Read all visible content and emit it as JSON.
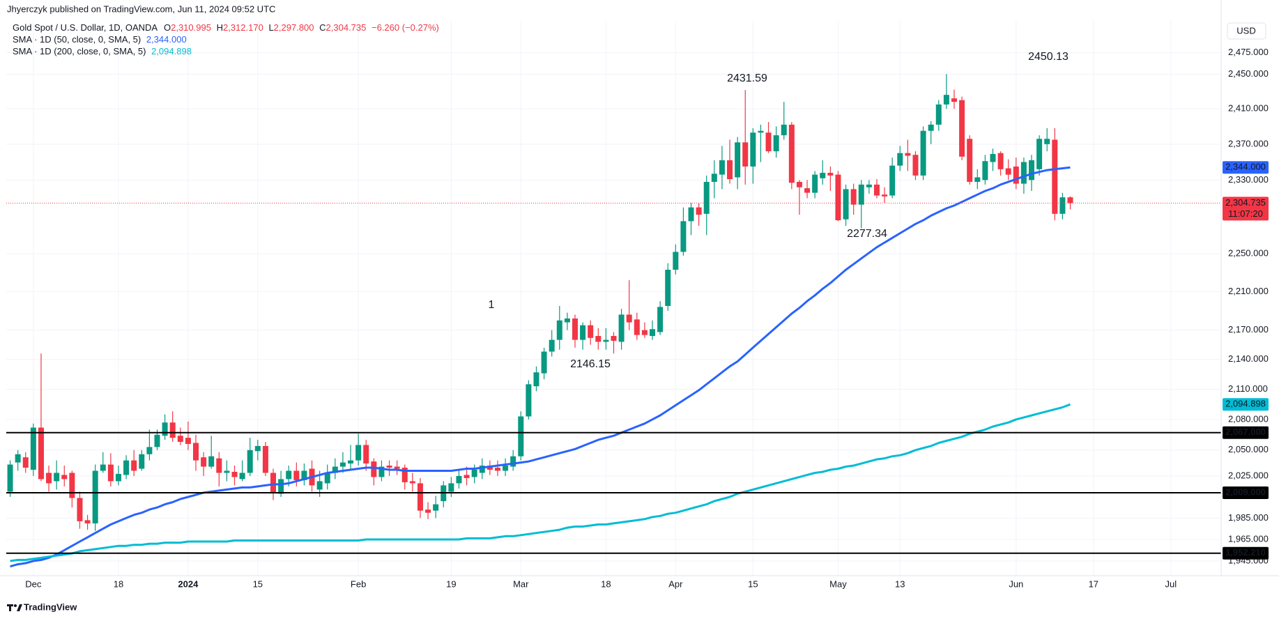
{
  "header": {
    "published": "Jhyerczyk published on TradingView.com, Jun 11, 2024 09:52 UTC",
    "symbol": "Gold Spot / U.S. Dollar, 1D, OANDA",
    "ohlc": [
      {
        "label": "O",
        "value": "2,310.995"
      },
      {
        "label": "H",
        "value": "2,312.170"
      },
      {
        "label": "L",
        "value": "2,297.800"
      },
      {
        "label": "C",
        "value": "2,304.735"
      }
    ],
    "change": "−6.260 (−0.27%)"
  },
  "currency": "USD",
  "brand": "TradingView",
  "chart_data": {
    "type": "candlestick",
    "log_scale": true,
    "grid": true,
    "up_color": "#089981",
    "down_color": "#f23645",
    "categories": [
      null,
      null,
      null,
      "Dec",
      null,
      null,
      null,
      null,
      null,
      null,
      null,
      null,
      null,
      null,
      "18",
      null,
      null,
      null,
      null,
      null,
      null,
      null,
      null,
      "2024",
      null,
      null,
      null,
      null,
      null,
      null,
      null,
      null,
      "15",
      null,
      null,
      null,
      null,
      null,
      null,
      null,
      null,
      null,
      null,
      null,
      null,
      "Feb",
      null,
      null,
      null,
      null,
      null,
      null,
      null,
      null,
      null,
      null,
      null,
      "19",
      null,
      null,
      null,
      null,
      null,
      null,
      null,
      null,
      "Mar",
      null,
      null,
      null,
      null,
      null,
      null,
      null,
      null,
      null,
      null,
      "18",
      null,
      null,
      null,
      null,
      null,
      null,
      null,
      null,
      "Apr",
      null,
      null,
      null,
      null,
      null,
      null,
      null,
      null,
      null,
      "15",
      null,
      null,
      null,
      null,
      null,
      null,
      null,
      null,
      null,
      null,
      "May",
      null,
      null,
      null,
      null,
      null,
      null,
      null,
      "13",
      null,
      null,
      null,
      null,
      null,
      null,
      null,
      null,
      null,
      null,
      null,
      null,
      null,
      null,
      "Jun",
      null,
      null,
      null,
      null,
      null,
      null,
      null,
      null,
      null,
      "17",
      null,
      null,
      null,
      null,
      null,
      null,
      null,
      null,
      null,
      "Jul",
      null,
      null,
      null,
      null,
      null,
      null
    ],
    "candles": [
      [
        2010,
        2040,
        2005,
        2036
      ],
      [
        2038,
        2050,
        2030,
        2046
      ],
      [
        2043,
        2048,
        2028,
        2033
      ],
      [
        2031,
        2076,
        2025,
        2072
      ],
      [
        2072,
        2146,
        2020,
        2022
      ],
      [
        2028,
        2035,
        2010,
        2018
      ],
      [
        2020,
        2040,
        2012,
        2028
      ],
      [
        2026,
        2035,
        2015,
        2022
      ],
      [
        2028,
        2030,
        1995,
        2004
      ],
      [
        2004,
        2010,
        1975,
        1982
      ],
      [
        1983,
        1988,
        1974,
        1980
      ],
      [
        1980,
        2036,
        1973,
        2030
      ],
      [
        2030,
        2048,
        2028,
        2036
      ],
      [
        2036,
        2047,
        2015,
        2020
      ],
      [
        2020,
        2035,
        2016,
        2027
      ],
      [
        2026,
        2045,
        2022,
        2040
      ],
      [
        2040,
        2050,
        2025,
        2030
      ],
      [
        2032,
        2050,
        2030,
        2046
      ],
      [
        2046,
        2070,
        2040,
        2053
      ],
      [
        2053,
        2070,
        2050,
        2065
      ],
      [
        2064,
        2085,
        2060,
        2077
      ],
      [
        2077,
        2088,
        2058,
        2062
      ],
      [
        2064,
        2072,
        2055,
        2058
      ],
      [
        2062,
        2078,
        2050,
        2056
      ],
      [
        2057,
        2065,
        2030,
        2040
      ],
      [
        2043,
        2048,
        2025,
        2034
      ],
      [
        2034,
        2064,
        2032,
        2044
      ],
      [
        2042,
        2048,
        2015,
        2028
      ],
      [
        2028,
        2040,
        2020,
        2030
      ],
      [
        2029,
        2035,
        2016,
        2024
      ],
      [
        2022,
        2040,
        2020,
        2028
      ],
      [
        2028,
        2062,
        2025,
        2050
      ],
      [
        2049,
        2060,
        2040,
        2054
      ],
      [
        2054,
        2058,
        2025,
        2028
      ],
      [
        2028,
        2032,
        2002,
        2009
      ],
      [
        2008,
        2030,
        2005,
        2022
      ],
      [
        2022,
        2035,
        2015,
        2030
      ],
      [
        2030,
        2038,
        2015,
        2021
      ],
      [
        2021,
        2037,
        2016,
        2030
      ],
      [
        2032,
        2040,
        2010,
        2016
      ],
      [
        2012,
        2030,
        2005,
        2020
      ],
      [
        2018,
        2036,
        2012,
        2028
      ],
      [
        2028,
        2042,
        2022,
        2034
      ],
      [
        2034,
        2048,
        2028,
        2038
      ],
      [
        2037,
        2055,
        2030,
        2040
      ],
      [
        2040,
        2066,
        2035,
        2055
      ],
      [
        2055,
        2060,
        2030,
        2037
      ],
      [
        2039,
        2042,
        2016,
        2024
      ],
      [
        2024,
        2040,
        2020,
        2034
      ],
      [
        2035,
        2040,
        2025,
        2033
      ],
      [
        2034,
        2040,
        2026,
        2032
      ],
      [
        2033,
        2036,
        2012,
        2019
      ],
      [
        2020,
        2028,
        2010,
        2018
      ],
      [
        2018,
        2023,
        1985,
        1992
      ],
      [
        1993,
        2000,
        1984,
        1990
      ],
      [
        1992,
        2006,
        1985,
        1998
      ],
      [
        2001,
        2020,
        1995,
        2016
      ],
      [
        2010,
        2024,
        2005,
        2018
      ],
      [
        2018,
        2032,
        2013,
        2025
      ],
      [
        2026,
        2034,
        2016,
        2023
      ],
      [
        2024,
        2036,
        2018,
        2031
      ],
      [
        2028,
        2042,
        2022,
        2035
      ],
      [
        2035,
        2040,
        2026,
        2031
      ],
      [
        2033,
        2040,
        2025,
        2030
      ],
      [
        2030,
        2042,
        2025,
        2035
      ],
      [
        2034,
        2050,
        2030,
        2044
      ],
      [
        2044,
        2088,
        2040,
        2083
      ],
      [
        2083,
        2119,
        2080,
        2115
      ],
      [
        2113,
        2133,
        2108,
        2127
      ],
      [
        2126,
        2152,
        2120,
        2148
      ],
      [
        2148,
        2170,
        2143,
        2160
      ],
      [
        2160,
        2195,
        2150,
        2180
      ],
      [
        2178,
        2188,
        2170,
        2182
      ],
      [
        2182,
        2186,
        2152,
        2160
      ],
      [
        2160,
        2178,
        2150,
        2175
      ],
      [
        2175,
        2180,
        2155,
        2162
      ],
      [
        2164,
        2172,
        2150,
        2158
      ],
      [
        2158,
        2172,
        2150,
        2160
      ],
      [
        2164,
        2168,
        2146,
        2159
      ],
      [
        2158,
        2192,
        2150,
        2186
      ],
      [
        2186,
        2222,
        2170,
        2178
      ],
      [
        2181,
        2188,
        2160,
        2165
      ],
      [
        2170,
        2178,
        2162,
        2165
      ],
      [
        2164,
        2180,
        2160,
        2171
      ],
      [
        2168,
        2200,
        2165,
        2194
      ],
      [
        2195,
        2240,
        2190,
        2233
      ],
      [
        2233,
        2260,
        2228,
        2252
      ],
      [
        2252,
        2300,
        2248,
        2285
      ],
      [
        2285,
        2305,
        2270,
        2300
      ],
      [
        2300,
        2305,
        2280,
        2292
      ],
      [
        2293,
        2335,
        2270,
        2328
      ],
      [
        2328,
        2352,
        2310,
        2337
      ],
      [
        2336,
        2368,
        2320,
        2352
      ],
      [
        2352,
        2375,
        2326,
        2331
      ],
      [
        2333,
        2378,
        2320,
        2372
      ],
      [
        2372,
        2431.59,
        2325,
        2345
      ],
      [
        2345,
        2388,
        2326,
        2383
      ],
      [
        2383,
        2392,
        2350,
        2385
      ],
      [
        2383,
        2395,
        2360,
        2362
      ],
      [
        2362,
        2390,
        2355,
        2380
      ],
      [
        2380,
        2418,
        2375,
        2392
      ],
      [
        2392,
        2395,
        2320,
        2327
      ],
      [
        2328,
        2330,
        2292,
        2322
      ],
      [
        2321,
        2330,
        2310,
        2316
      ],
      [
        2316,
        2340,
        2310,
        2336
      ],
      [
        2332,
        2352,
        2325,
        2338
      ],
      [
        2338,
        2345,
        2318,
        2335
      ],
      [
        2336,
        2340,
        2285,
        2286
      ],
      [
        2287,
        2325,
        2280,
        2320
      ],
      [
        2320,
        2326,
        2292,
        2303
      ],
      [
        2303,
        2330,
        2277.34,
        2325
      ],
      [
        2322,
        2330,
        2315,
        2325
      ],
      [
        2325,
        2331,
        2310,
        2313
      ],
      [
        2314,
        2322,
        2305,
        2312
      ],
      [
        2313,
        2355,
        2310,
        2346
      ],
      [
        2346,
        2368,
        2340,
        2360
      ],
      [
        2360,
        2375,
        2340,
        2357
      ],
      [
        2358,
        2362,
        2330,
        2335
      ],
      [
        2335,
        2390,
        2330,
        2385
      ],
      [
        2385,
        2396,
        2370,
        2392
      ],
      [
        2392,
        2420,
        2385,
        2415
      ],
      [
        2415,
        2450.13,
        2410,
        2426
      ],
      [
        2422,
        2432,
        2410,
        2418
      ],
      [
        2420,
        2424,
        2352,
        2356
      ],
      [
        2376,
        2380,
        2325,
        2328
      ],
      [
        2328,
        2342,
        2320,
        2333
      ],
      [
        2330,
        2358,
        2325,
        2351
      ],
      [
        2350,
        2365,
        2340,
        2359
      ],
      [
        2360,
        2362,
        2335,
        2342
      ],
      [
        2343,
        2353,
        2330,
        2336
      ],
      [
        2345,
        2355,
        2320,
        2326
      ],
      [
        2326,
        2355,
        2315,
        2350
      ],
      [
        2330,
        2358,
        2318,
        2352
      ],
      [
        2342,
        2380,
        2335,
        2376
      ],
      [
        2370,
        2388,
        2362,
        2376
      ],
      [
        2375,
        2388,
        2286,
        2293
      ],
      [
        2293,
        2316,
        2287,
        2311
      ],
      [
        2310.995,
        2312.17,
        2297.8,
        2304.735
      ],
      null,
      null,
      null,
      null,
      null,
      null,
      null,
      null,
      null,
      null,
      null,
      null,
      null,
      null,
      null,
      null,
      null,
      null,
      null
    ],
    "series": [
      {
        "name": "SMA · 1D (50, close, 0, SMA, 5)",
        "color": "#2962ff",
        "last_value_label": "2,344.000",
        "values": [
          1940,
          1942,
          1943,
          1945,
          1946,
          1948,
          1951,
          1955,
          1959,
          1963,
          1967,
          1971,
          1975,
          1979,
          1982,
          1985,
          1988,
          1990,
          1993,
          1995,
          1998,
          2000,
          2003,
          2005,
          2007,
          2009,
          2010,
          2011,
          2012,
          2013,
          2014,
          2014,
          2015,
          2016,
          2017,
          2017,
          2018,
          2020,
          2022,
          2024,
          2026,
          2028,
          2029,
          2030,
          2031,
          2032,
          2033,
          2033,
          2032,
          2031,
          2031,
          2030,
          2030,
          2030,
          2030,
          2030,
          2030,
          2030,
          2031,
          2032,
          2032,
          2033,
          2034,
          2035,
          2036,
          2037,
          2038,
          2039,
          2041,
          2043,
          2045,
          2047,
          2049,
          2051,
          2054,
          2057,
          2060,
          2062,
          2064,
          2067,
          2070,
          2073,
          2076,
          2080,
          2084,
          2089,
          2094,
          2099,
          2104,
          2109,
          2115,
          2121,
          2127,
          2133,
          2138,
          2145,
          2152,
          2159,
          2166,
          2173,
          2180,
          2187,
          2193,
          2200,
          2206,
          2213,
          2219,
          2226,
          2233,
          2239,
          2245,
          2251,
          2257,
          2262,
          2267,
          2272,
          2277,
          2282,
          2286,
          2291,
          2295,
          2299,
          2302,
          2306,
          2310,
          2314,
          2318,
          2321,
          2325,
          2328,
          2331,
          2334,
          2337,
          2339,
          2341,
          2342,
          2343,
          2344,
          null,
          null,
          null,
          null,
          null,
          null,
          null,
          null,
          null,
          null,
          null,
          null,
          null,
          null,
          null,
          null,
          null,
          null,
          null
        ]
      },
      {
        "name": "SMA · 1D (200, close, 0, SMA, 5)",
        "color": "#00bcd4",
        "last_value_label": "2,094.898",
        "values": [
          1945,
          1946,
          1946,
          1947,
          1948,
          1949,
          1950,
          1951,
          1952,
          1954,
          1955,
          1956,
          1957,
          1958,
          1959,
          1959,
          1960,
          1960,
          1961,
          1961,
          1962,
          1962,
          1962,
          1963,
          1963,
          1963,
          1963,
          1963,
          1963,
          1964,
          1964,
          1964,
          1964,
          1964,
          1964,
          1964,
          1964,
          1964,
          1964,
          1964,
          1964,
          1964,
          1964,
          1964,
          1964,
          1964,
          1965,
          1965,
          1965,
          1965,
          1965,
          1965,
          1965,
          1965,
          1965,
          1965,
          1965,
          1965,
          1965,
          1966,
          1966,
          1966,
          1966,
          1967,
          1968,
          1968,
          1969,
          1970,
          1971,
          1972,
          1973,
          1974,
          1976,
          1977,
          1977,
          1978,
          1979,
          1979,
          1980,
          1981,
          1982,
          1983,
          1984,
          1986,
          1987,
          1989,
          1990,
          1992,
          1994,
          1996,
          1998,
          2001,
          2003,
          2005,
          2008,
          2010,
          2012,
          2014,
          2016,
          2018,
          2020,
          2022,
          2024,
          2026,
          2028,
          2029,
          2031,
          2032,
          2034,
          2035,
          2037,
          2039,
          2041,
          2042,
          2044,
          2045,
          2047,
          2050,
          2052,
          2054,
          2057,
          2059,
          2061,
          2063,
          2066,
          2068,
          2070,
          2073,
          2075,
          2077,
          2080,
          2082,
          2084,
          2086,
          2088,
          2090,
          2092,
          2094.898,
          null,
          null,
          null,
          null,
          null,
          null,
          null,
          null,
          null,
          null,
          null,
          null,
          null,
          null,
          null,
          null,
          null,
          null,
          null
        ]
      }
    ],
    "ylim": [
      1931.5,
      2512.6
    ],
    "yticks": [
      {
        "value": 1945,
        "label": "1,945.000"
      },
      {
        "value": 1965,
        "label": "1,965.000"
      },
      {
        "value": 1985,
        "label": "1,985.000"
      },
      {
        "value": 2025,
        "label": "2,025.000"
      },
      {
        "value": 2050,
        "label": "2,050.000"
      },
      {
        "value": 2080,
        "label": "2,080.000"
      },
      {
        "value": 2110,
        "label": "2,110.000"
      },
      {
        "value": 2140,
        "label": "2,140.000"
      },
      {
        "value": 2170,
        "label": "2,170.000"
      },
      {
        "value": 2210,
        "label": "2,210.000"
      },
      {
        "value": 2250,
        "label": "2,250.000"
      },
      {
        "value": 2330,
        "label": "2,330.000"
      },
      {
        "value": 2370,
        "label": "2,370.000"
      },
      {
        "value": 2410,
        "label": "2,410.000"
      },
      {
        "value": 2450,
        "label": "2,450.000"
      },
      {
        "value": 2475,
        "label": "2,475.000"
      }
    ],
    "hlines": [
      {
        "value": 2067,
        "label": "2,067.000"
      },
      {
        "value": 2009,
        "label": "2,009.000"
      },
      {
        "value": 1952.21,
        "label": "1,952.210"
      }
    ],
    "price_line": {
      "value": 2304.735,
      "label": "2,304.735",
      "countdown": "11:07:20",
      "color": "#f23645"
    },
    "annotations": [
      "2431.59",
      "2450.13",
      "2277.34",
      "2146.15",
      "1"
    ]
  }
}
